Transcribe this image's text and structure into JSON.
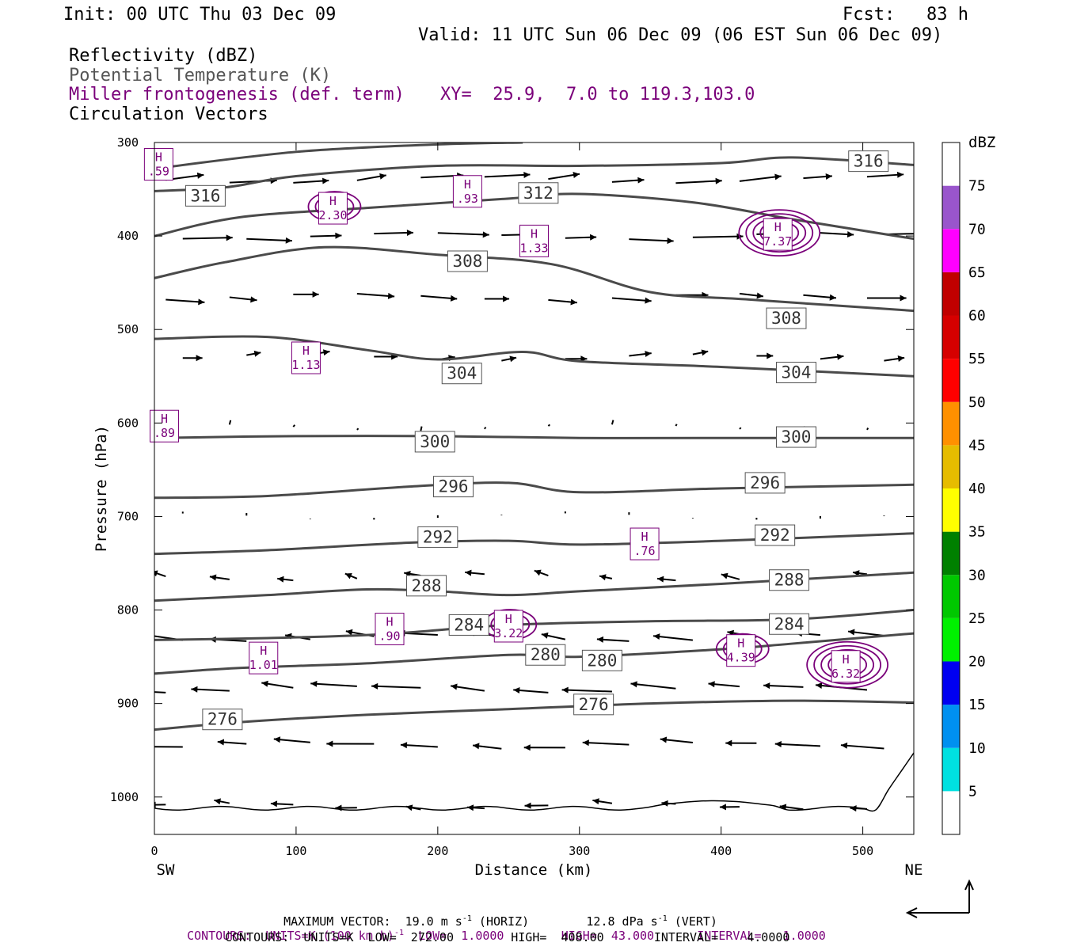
{
  "header": {
    "init": "Init: 00 UTC Thu 03 Dec 09",
    "fcst": "Fcst:   83 h",
    "valid": "Valid: 11 UTC Sun 06 Dec 09 (06 EST Sun 06 Dec 09)"
  },
  "fields": {
    "reflectivity": "Reflectivity (dBZ)",
    "theta": "Potential Temperature (K)",
    "frontogenesis": "Miller frontogenesis (def. term)",
    "xy": "XY=  25.9,  7.0 to 119.3,103.0",
    "vectors": "Circulation Vectors"
  },
  "colors": {
    "theta": "#4a4a4a",
    "frontogenesis": "#7a007a",
    "terrain": "#000000"
  },
  "chart_data": {
    "type": "cross-section",
    "xlabel": "Distance (km)",
    "ylabel": "Pressure (hPa)",
    "x_range": [
      0,
      536
    ],
    "y_range": [
      300,
      1040
    ],
    "y_log": false,
    "x_ticks": [
      0,
      100,
      200,
      300,
      400,
      500
    ],
    "y_ticks": [
      300,
      400,
      500,
      600,
      700,
      800,
      900,
      1000
    ],
    "left_end_label": "SW",
    "right_end_label": "NE",
    "theta_contours": [
      {
        "value": 272,
        "points": [
          [
            0,
            1030
          ],
          [
            536,
            1030
          ]
        ],
        "label": null
      },
      {
        "value": 276,
        "points": [
          [
            0,
            928
          ],
          [
            60,
            920
          ],
          [
            150,
            912
          ],
          [
            250,
            906
          ],
          [
            350,
            900
          ],
          [
            450,
            897
          ],
          [
            536,
            899
          ]
        ],
        "labels": [
          [
            48,
            917
          ],
          [
            310,
            901
          ]
        ]
      },
      {
        "value": 280,
        "points": [
          [
            0,
            868
          ],
          [
            60,
            862
          ],
          [
            150,
            857
          ],
          [
            250,
            848
          ],
          [
            300,
            850
          ],
          [
            400,
            842
          ],
          [
            450,
            836
          ],
          [
            536,
            825
          ]
        ],
        "labels": [
          [
            276,
            848
          ],
          [
            316,
            854
          ]
        ]
      },
      {
        "value": 284,
        "points": [
          [
            0,
            832
          ],
          [
            80,
            830
          ],
          [
            160,
            826
          ],
          [
            250,
            816
          ],
          [
            350,
            812
          ],
          [
            450,
            810
          ],
          [
            536,
            800
          ]
        ],
        "labels": [
          [
            222,
            816
          ],
          [
            448,
            815
          ]
        ]
      },
      {
        "value": 288,
        "points": [
          [
            0,
            790
          ],
          [
            80,
            784
          ],
          [
            150,
            778
          ],
          [
            200,
            780
          ],
          [
            250,
            784
          ],
          [
            300,
            780
          ],
          [
            400,
            772
          ],
          [
            536,
            760
          ]
        ],
        "labels": [
          [
            192,
            774
          ],
          [
            448,
            768
          ]
        ]
      },
      {
        "value": 292,
        "points": [
          [
            0,
            740
          ],
          [
            80,
            736
          ],
          [
            180,
            728
          ],
          [
            250,
            726
          ],
          [
            300,
            730
          ],
          [
            400,
            726
          ],
          [
            536,
            718
          ]
        ],
        "labels": [
          [
            200,
            722
          ],
          [
            438,
            720
          ]
        ]
      },
      {
        "value": 296,
        "points": [
          [
            0,
            680
          ],
          [
            80,
            678
          ],
          [
            180,
            668
          ],
          [
            250,
            664
          ],
          [
            300,
            674
          ],
          [
            400,
            670
          ],
          [
            536,
            666
          ]
        ],
        "labels": [
          [
            211,
            668
          ],
          [
            431,
            664
          ]
        ]
      },
      {
        "value": 300,
        "points": [
          [
            0,
            616
          ],
          [
            100,
            614
          ],
          [
            200,
            614
          ],
          [
            300,
            616
          ],
          [
            400,
            616
          ],
          [
            536,
            616
          ]
        ],
        "labels": [
          [
            198,
            620
          ],
          [
            453,
            615
          ]
        ]
      },
      {
        "value": 304,
        "points": [
          [
            0,
            510
          ],
          [
            80,
            508
          ],
          [
            150,
            522
          ],
          [
            200,
            532
          ],
          [
            260,
            524
          ],
          [
            300,
            534
          ],
          [
            400,
            540
          ],
          [
            536,
            550
          ]
        ],
        "labels": [
          [
            217,
            547
          ],
          [
            453,
            546
          ]
        ]
      },
      {
        "value": 308,
        "points": [
          [
            0,
            445
          ],
          [
            50,
            428
          ],
          [
            120,
            412
          ],
          [
            200,
            420
          ],
          [
            280,
            430
          ],
          [
            350,
            460
          ],
          [
            420,
            468
          ],
          [
            536,
            480
          ]
        ],
        "labels": [
          [
            221,
            427
          ],
          [
            446,
            488
          ]
        ]
      },
      {
        "value": 312,
        "points": [
          [
            0,
            400
          ],
          [
            60,
            380
          ],
          [
            150,
            370
          ],
          [
            250,
            360
          ],
          [
            300,
            355
          ],
          [
            380,
            364
          ],
          [
            450,
            382
          ],
          [
            536,
            403
          ]
        ],
        "labels": [
          [
            271,
            354
          ]
        ]
      },
      {
        "value": 316,
        "points": [
          [
            0,
            352
          ],
          [
            50,
            348
          ],
          [
            100,
            336
          ],
          [
            200,
            325
          ],
          [
            300,
            325
          ],
          [
            400,
            322
          ],
          [
            450,
            316
          ],
          [
            536,
            324
          ]
        ],
        "labels": [
          [
            36,
            357
          ],
          [
            504,
            320
          ]
        ]
      },
      {
        "value": 320,
        "points": [
          [
            0,
            328
          ],
          [
            100,
            310
          ],
          [
            200,
            302
          ],
          [
            260,
            300
          ]
        ],
        "label": null
      }
    ],
    "frontogenesis_maxima": [
      {
        "label": "H",
        "value": "7.37",
        "x": 440,
        "y": 400
      },
      {
        "label": "H",
        "value": "6.32",
        "x": 488,
        "y": 862
      },
      {
        "label": "H",
        "value": "4.39",
        "x": 414,
        "y": 845
      },
      {
        "label": "H",
        "value": "2.30",
        "x": 126,
        "y": 372
      },
      {
        "label": "H",
        "value": "3.22",
        "x": 250,
        "y": 819
      },
      {
        "label": "H",
        "value": "1.33",
        "x": 268,
        "y": 407
      },
      {
        "label": "H",
        "value": "1.13",
        "x": 107,
        "y": 532
      },
      {
        "label": "H",
        "value": "1.01",
        "x": 77,
        "y": 853
      },
      {
        "label": "H",
        "value": ".93",
        "x": 221,
        "y": 354
      },
      {
        "label": "H",
        "value": ".90",
        "x": 166,
        "y": 822
      },
      {
        "label": "H",
        "value": ".89",
        "x": 7,
        "y": 605
      },
      {
        "label": "H",
        "value": ".76",
        "x": 346,
        "y": 731
      },
      {
        "label": "H",
        "value": ".59",
        "x": 3,
        "y": 325
      }
    ],
    "vector_levels": [
      {
        "p": 340,
        "u": 6,
        "w": 0.5
      },
      {
        "p": 400,
        "u": 6.5,
        "w": 0
      },
      {
        "p": 465,
        "u": 5,
        "w": -0.3
      },
      {
        "p": 530,
        "u": 3,
        "w": 0.3
      },
      {
        "p": 605,
        "u": 0.2,
        "w": 0.4
      },
      {
        "p": 700,
        "u": 0,
        "w": 0.2
      },
      {
        "p": 765,
        "u": -2.5,
        "w": 0.5
      },
      {
        "p": 830,
        "u": -5,
        "w": 0.6
      },
      {
        "p": 885,
        "u": -6.5,
        "w": 0.5
      },
      {
        "p": 945,
        "u": -6,
        "w": 0.3
      },
      {
        "p": 1010,
        "u": -3,
        "w": 0.2
      }
    ],
    "reflectivity_colorbar": {
      "title": "dBZ",
      "levels": [
        5,
        10,
        15,
        20,
        25,
        30,
        35,
        40,
        45,
        50,
        55,
        60,
        65,
        70,
        75
      ],
      "colors": [
        "#ffffff",
        "#00e0e0",
        "#0090f0",
        "#0000f0",
        "#00f000",
        "#00c800",
        "#008000",
        "#ffff00",
        "#e6bc00",
        "#ff9000",
        "#ff0000",
        "#d60000",
        "#c00000",
        "#ff00ff",
        "#9955cc",
        "#ffffff"
      ]
    }
  },
  "footer": {
    "max_vector": "MAXIMUM VECTOR:  19.0 m s",
    "max_vector_sup": "-1",
    "max_vector_tail": " (HORIZ)        12.8 dPa s",
    "max_vector_sup2": "-1",
    "max_vector_tail2": " (VERT)",
    "contours_fg": "CONTOURS:  UNITS=K (100 km h)",
    "contours_fg_sup": "-1",
    "contours_fg_tail": "  LOW=  1.0000        HIGH=  43.000      INTERVAL=   1.0000",
    "contours_theta": "CONTOURS:  UNITS=K  LOW=  272.00        HIGH=  408.00       INTERVAL=    4.0000"
  }
}
